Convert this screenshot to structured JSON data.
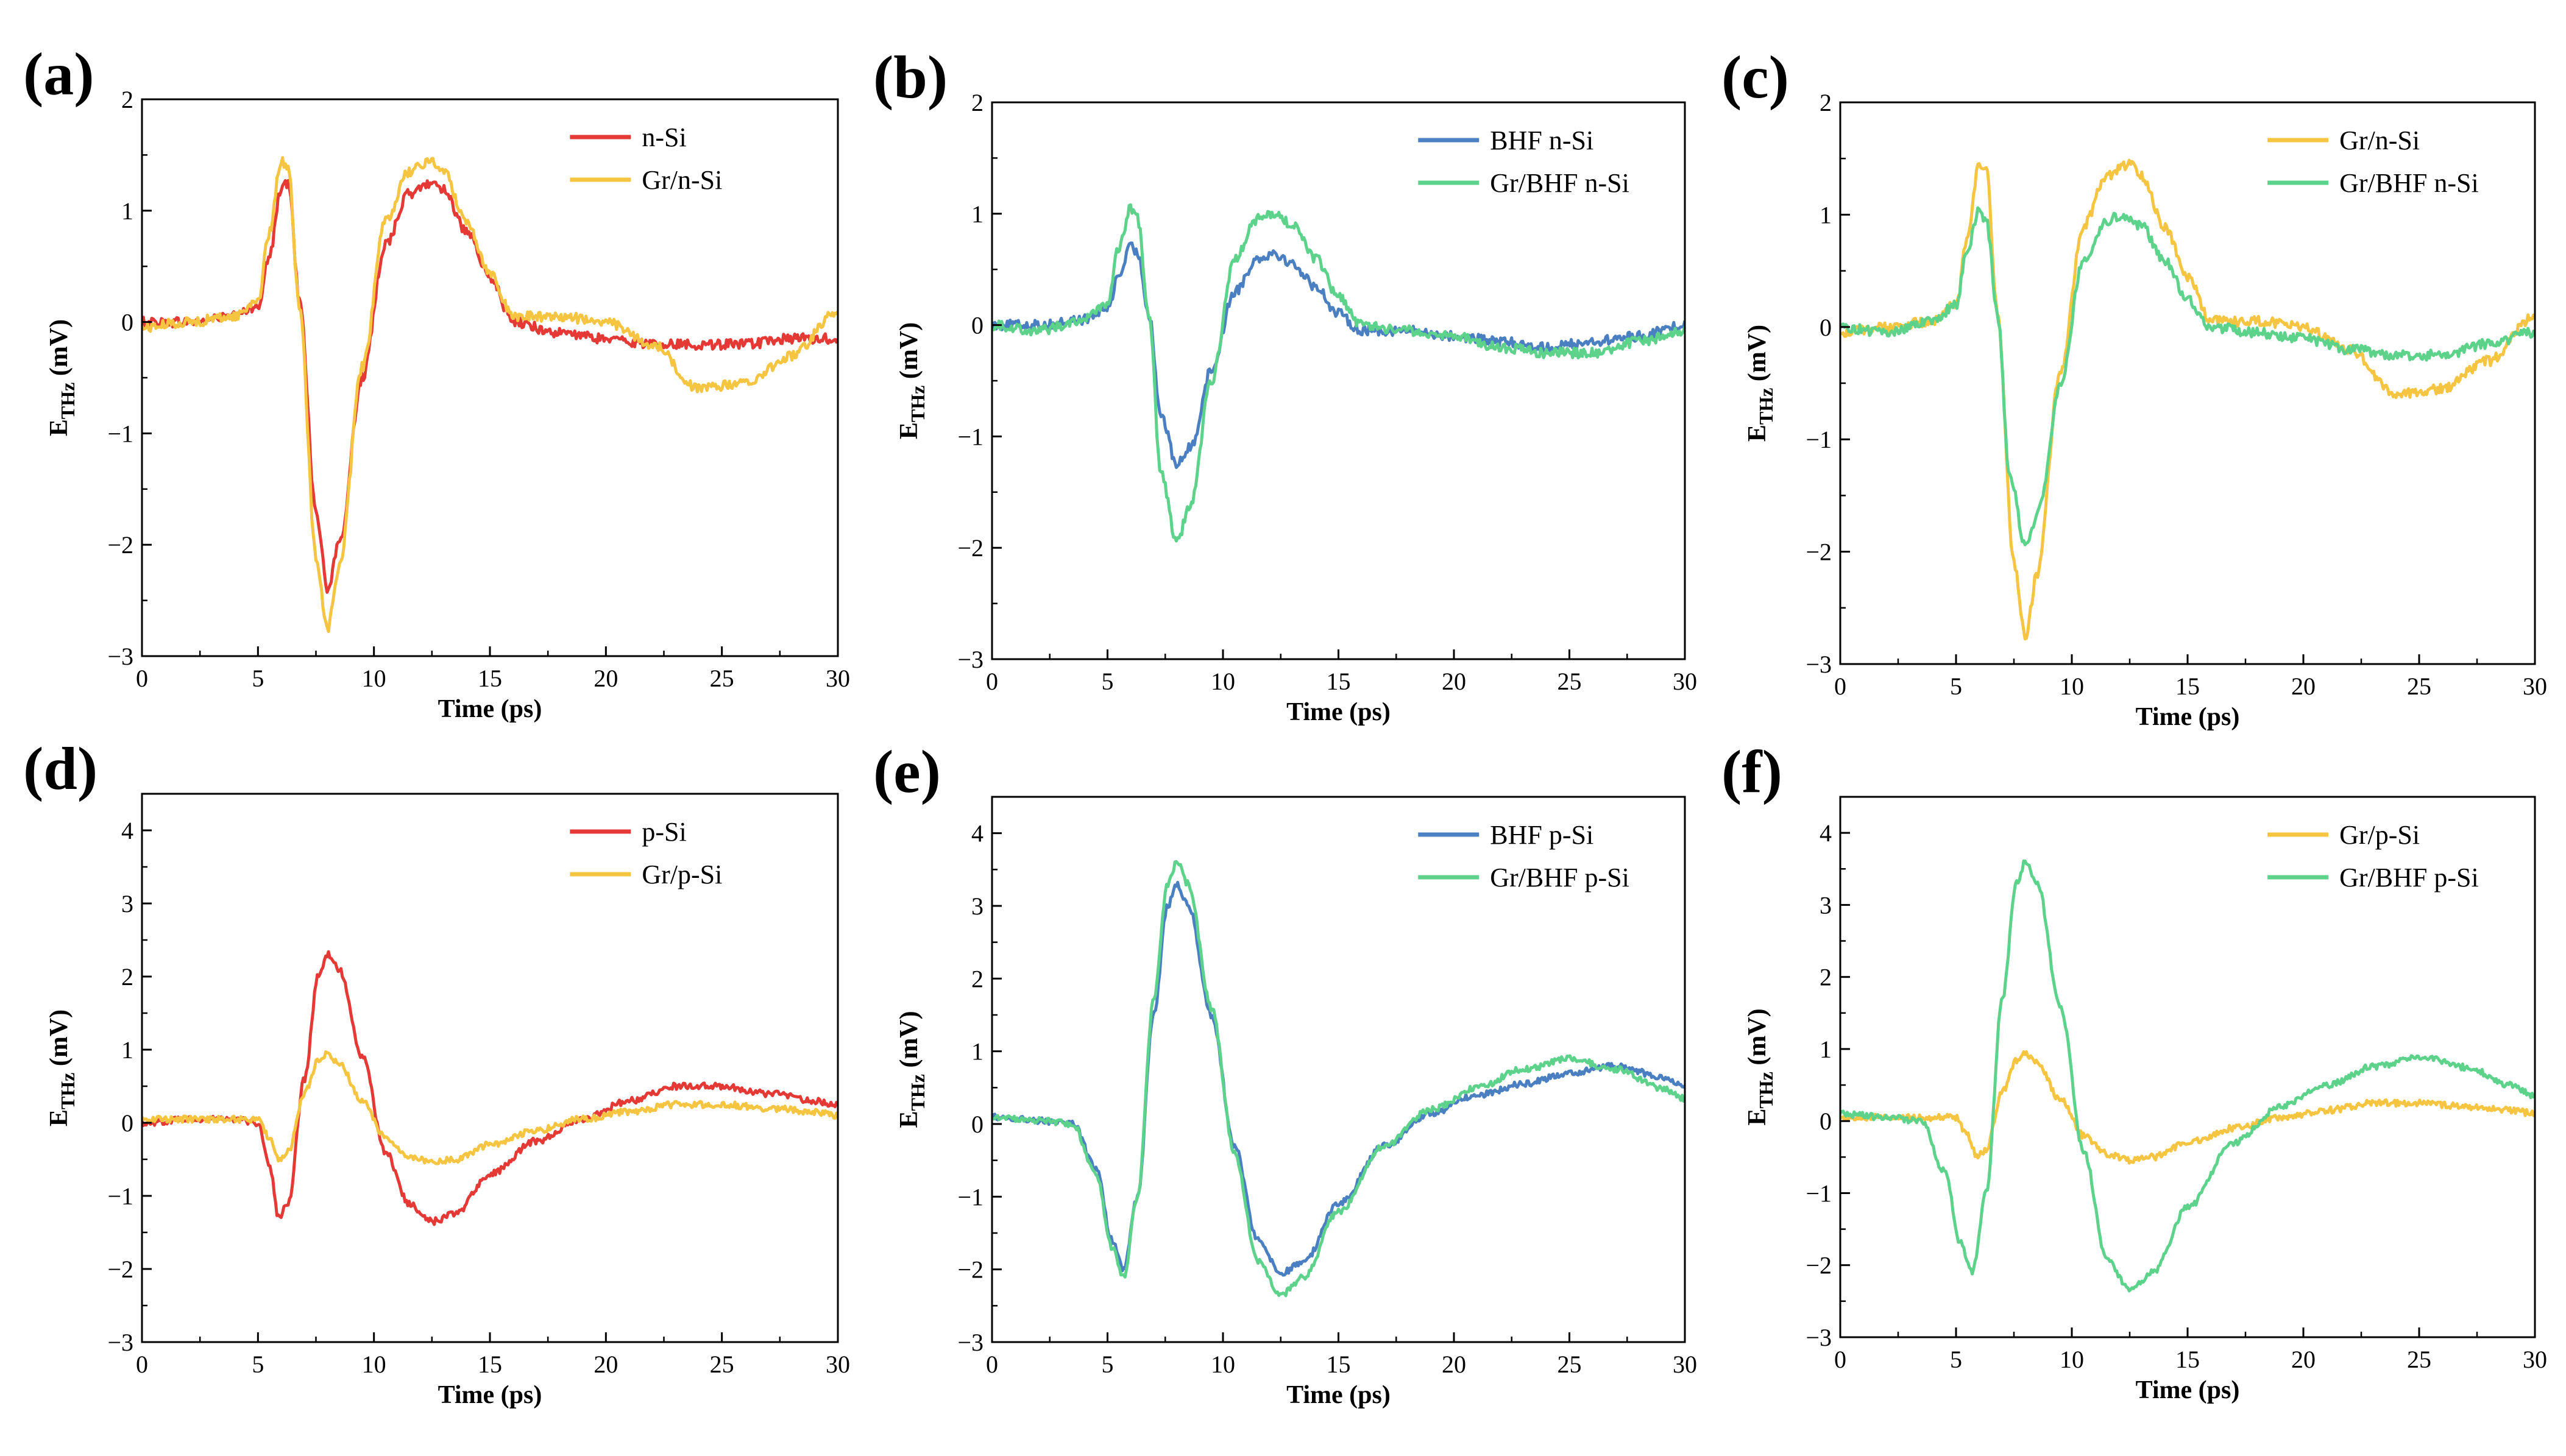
{
  "figure": {
    "colors": {
      "red": "#e53935",
      "yellow": "#f5c542",
      "blue": "#4a7fc1",
      "green": "#5cd28a"
    }
  },
  "chart_data": [
    {
      "type": "line",
      "panel_label": "(a)",
      "xlabel": "Time (ps)",
      "ylabel_main": "E",
      "ylabel_sub": "THz",
      "ylabel_unit": " (mV)",
      "xlim": [
        0,
        30
      ],
      "ylim": [
        -3,
        2
      ],
      "xticks": [
        0,
        5,
        10,
        15,
        20,
        25,
        30
      ],
      "yticks": [
        2,
        1,
        0,
        -1,
        -2,
        -3
      ],
      "xtick_labels": [
        "0",
        "5",
        "10",
        "15",
        "20",
        "25",
        "30"
      ],
      "ytick_labels": [
        "2",
        "1",
        "0",
        "−1",
        "−2",
        "−3"
      ],
      "legend_position": "top-right",
      "series": [
        {
          "name": "n-Si",
          "color_key": "red",
          "x": [
            0,
            2,
            4,
            5,
            5.5,
            6,
            6.3,
            6.8,
            7.5,
            8,
            8.5,
            9.5,
            10.5,
            11.5,
            12.5,
            13,
            14,
            15,
            16,
            18,
            20,
            22,
            24,
            26,
            28,
            30
          ],
          "y": [
            0,
            0,
            0.05,
            0.15,
            0.6,
            1.2,
            1.25,
            0.2,
            -1.7,
            -2.4,
            -2.0,
            -0.5,
            0.7,
            1.15,
            1.25,
            1.2,
            0.8,
            0.4,
            0.0,
            -0.1,
            -0.15,
            -0.2,
            -0.2,
            -0.2,
            -0.15,
            -0.15
          ]
        },
        {
          "name": "Gr/n-Si",
          "color_key": "yellow",
          "x": [
            0,
            2,
            4,
            5,
            5.5,
            6,
            6.3,
            6.8,
            7.5,
            8,
            8.5,
            9.5,
            10.5,
            11.5,
            12.5,
            13,
            14,
            15,
            16,
            18,
            20,
            22,
            24,
            26,
            28,
            30
          ],
          "y": [
            -0.05,
            0,
            0.05,
            0.2,
            0.8,
            1.45,
            1.4,
            0.1,
            -2.1,
            -2.75,
            -2.2,
            -0.4,
            0.9,
            1.35,
            1.45,
            1.35,
            0.9,
            0.45,
            0.05,
            0.05,
            0.0,
            -0.2,
            -0.6,
            -0.55,
            -0.3,
            0.1
          ]
        }
      ]
    },
    {
      "type": "line",
      "panel_label": "(b)",
      "xlabel": "Time (ps)",
      "ylabel_main": "E",
      "ylabel_sub": "THz",
      "ylabel_unit": " (mV)",
      "xlim": [
        0,
        30
      ],
      "ylim": [
        -3,
        2
      ],
      "xticks": [
        0,
        5,
        10,
        15,
        20,
        25,
        30
      ],
      "yticks": [
        2,
        1,
        0,
        -1,
        -2,
        -3
      ],
      "xtick_labels": [
        "0",
        "5",
        "10",
        "15",
        "20",
        "25",
        "30"
      ],
      "ytick_labels": [
        "2",
        "1",
        "0",
        "−1",
        "−2",
        "−3"
      ],
      "legend_position": "top-right",
      "series": [
        {
          "name": "BHF n-Si",
          "color_key": "blue",
          "x": [
            0,
            2,
            4,
            5,
            5.5,
            6,
            6.3,
            6.8,
            7.3,
            8,
            8.6,
            9.5,
            10.5,
            11.5,
            12.2,
            13,
            14,
            15,
            16,
            18,
            20,
            22,
            24,
            26,
            28,
            30
          ],
          "y": [
            0,
            0,
            0.05,
            0.15,
            0.45,
            0.7,
            0.65,
            0.1,
            -0.8,
            -1.25,
            -1.1,
            -0.4,
            0.3,
            0.6,
            0.65,
            0.55,
            0.35,
            0.1,
            -0.05,
            -0.05,
            -0.1,
            -0.15,
            -0.2,
            -0.15,
            -0.1,
            0.0
          ]
        },
        {
          "name": "Gr/BHF n-Si",
          "color_key": "green",
          "x": [
            0,
            2,
            4,
            5,
            5.5,
            6,
            6.3,
            6.8,
            7.3,
            8,
            8.6,
            9.5,
            10.5,
            11.5,
            12.2,
            13,
            14,
            15,
            16,
            18,
            20,
            22,
            24,
            26,
            28,
            30
          ],
          "y": [
            0,
            -0.05,
            0.05,
            0.2,
            0.7,
            1.05,
            0.95,
            0.1,
            -1.3,
            -1.95,
            -1.6,
            -0.5,
            0.6,
            0.95,
            1.0,
            0.9,
            0.6,
            0.25,
            0.0,
            -0.05,
            -0.1,
            -0.2,
            -0.25,
            -0.25,
            -0.15,
            -0.05
          ]
        }
      ]
    },
    {
      "type": "line",
      "panel_label": "(c)",
      "xlabel": "Time (ps)",
      "ylabel_main": "E",
      "ylabel_sub": "THz",
      "ylabel_unit": " (mV)",
      "xlim": [
        0,
        30
      ],
      "ylim": [
        -3,
        2
      ],
      "xticks": [
        0,
        5,
        10,
        15,
        20,
        25,
        30
      ],
      "yticks": [
        2,
        1,
        0,
        -1,
        -2,
        -3
      ],
      "xtick_labels": [
        "0",
        "5",
        "10",
        "15",
        "20",
        "25",
        "30"
      ],
      "ytick_labels": [
        "2",
        "1",
        "0",
        "−1",
        "−2",
        "−3"
      ],
      "legend_position": "top-right",
      "series": [
        {
          "name": "Gr/n-Si",
          "color_key": "yellow",
          "x": [
            0,
            2,
            4,
            5,
            5.5,
            6,
            6.3,
            6.8,
            7.5,
            8,
            8.5,
            9.5,
            10.5,
            11.5,
            12.5,
            13,
            14,
            15,
            16,
            18,
            20,
            22,
            24,
            26,
            28,
            30
          ],
          "y": [
            -0.05,
            0,
            0.05,
            0.2,
            0.8,
            1.45,
            1.4,
            0.1,
            -2.1,
            -2.75,
            -2.2,
            -0.4,
            0.9,
            1.35,
            1.45,
            1.35,
            0.9,
            0.45,
            0.05,
            0.05,
            0.0,
            -0.2,
            -0.6,
            -0.55,
            -0.3,
            0.1
          ]
        },
        {
          "name": "Gr/BHF n-Si",
          "color_key": "green",
          "x": [
            0,
            2,
            4,
            5,
            5.5,
            6,
            6.3,
            6.8,
            7.3,
            8,
            8.6,
            9.5,
            10.5,
            11.5,
            12.2,
            13,
            14,
            15,
            16,
            18,
            20,
            22,
            24,
            26,
            28,
            30
          ],
          "y": [
            0,
            -0.05,
            0.05,
            0.2,
            0.7,
            1.05,
            0.95,
            0.1,
            -1.3,
            -1.95,
            -1.6,
            -0.5,
            0.6,
            0.95,
            1.0,
            0.9,
            0.6,
            0.25,
            0.0,
            -0.05,
            -0.1,
            -0.2,
            -0.25,
            -0.25,
            -0.15,
            -0.05
          ]
        }
      ]
    },
    {
      "type": "line",
      "panel_label": "(d)",
      "xlabel": "Time (ps)",
      "ylabel_main": "E",
      "ylabel_sub": "THz",
      "ylabel_unit": " (mV)",
      "xlim": [
        0,
        30
      ],
      "ylim": [
        -3,
        4.5
      ],
      "xticks": [
        0,
        5,
        10,
        15,
        20,
        25,
        30
      ],
      "yticks": [
        4,
        3,
        2,
        1,
        0,
        -1,
        -2,
        -3
      ],
      "xtick_labels": [
        "0",
        "5",
        "10",
        "15",
        "20",
        "25",
        "30"
      ],
      "ytick_labels": [
        "4",
        "3",
        "2",
        "1",
        "0",
        "−1",
        "−2",
        "−3"
      ],
      "legend_position": "top-right",
      "series": [
        {
          "name": "p-Si",
          "color_key": "red",
          "x": [
            0,
            2,
            4,
            5,
            5.5,
            5.9,
            6.3,
            7,
            7.6,
            8,
            8.5,
            9.5,
            10.5,
            11.5,
            12.5,
            13.5,
            15,
            17,
            19,
            21,
            23,
            25,
            27,
            29,
            30
          ],
          "y": [
            0,
            0.05,
            0.05,
            0.0,
            -0.6,
            -1.3,
            -1.1,
            0.6,
            2.0,
            2.3,
            2.1,
            0.9,
            -0.4,
            -1.1,
            -1.35,
            -1.25,
            -0.7,
            -0.25,
            0.05,
            0.3,
            0.5,
            0.5,
            0.4,
            0.3,
            0.25
          ]
        },
        {
          "name": "Gr/p-Si",
          "color_key": "yellow",
          "x": [
            0,
            2,
            4,
            5,
            5.5,
            5.9,
            6.3,
            7,
            7.6,
            8,
            8.5,
            9.5,
            10.5,
            11.5,
            12.5,
            13.5,
            15,
            17,
            19,
            21,
            23,
            25,
            27,
            29,
            30
          ],
          "y": [
            0.05,
            0.05,
            0.05,
            0.05,
            -0.2,
            -0.5,
            -0.4,
            0.4,
            0.85,
            0.95,
            0.8,
            0.3,
            -0.2,
            -0.45,
            -0.55,
            -0.5,
            -0.3,
            -0.1,
            0.05,
            0.15,
            0.25,
            0.25,
            0.2,
            0.15,
            0.1
          ]
        }
      ]
    },
    {
      "type": "line",
      "panel_label": "(e)",
      "xlabel": "Time (ps)",
      "ylabel_main": "E",
      "ylabel_sub": "THz",
      "ylabel_unit": " (mV)",
      "xlim": [
        0,
        30
      ],
      "ylim": [
        -3,
        4.5
      ],
      "xticks": [
        0,
        5,
        10,
        15,
        20,
        25,
        30
      ],
      "yticks": [
        4,
        3,
        2,
        1,
        0,
        -1,
        -2,
        -3
      ],
      "xtick_labels": [
        "0",
        "5",
        "10",
        "15",
        "20",
        "25",
        "30"
      ],
      "ytick_labels": [
        "4",
        "3",
        "2",
        "1",
        "0",
        "−1",
        "−2",
        "−3"
      ],
      "legend_position": "top-right",
      "series": [
        {
          "name": "BHF p-Si",
          "color_key": "blue",
          "x": [
            0,
            2,
            3.5,
            4.5,
            5.2,
            5.7,
            6.3,
            7,
            7.6,
            8,
            8.5,
            9.5,
            10.5,
            11.5,
            12.5,
            13.5,
            15,
            17,
            19,
            21,
            23,
            25,
            27,
            29,
            30
          ],
          "y": [
            0.1,
            0.05,
            0.0,
            -0.6,
            -1.6,
            -2.0,
            -1.0,
            1.5,
            3.0,
            3.3,
            3.0,
            1.5,
            -0.3,
            -1.6,
            -2.05,
            -1.9,
            -1.1,
            -0.3,
            0.15,
            0.4,
            0.55,
            0.7,
            0.8,
            0.65,
            0.55
          ]
        },
        {
          "name": "Gr/BHF p-Si",
          "color_key": "green",
          "x": [
            0,
            2,
            3.5,
            4.5,
            5.2,
            5.7,
            6.3,
            7,
            7.6,
            8,
            8.5,
            9.5,
            10.5,
            11.5,
            12.5,
            13.5,
            15,
            17,
            19,
            21,
            23,
            25,
            27,
            29,
            30
          ],
          "y": [
            0.1,
            0.05,
            0.0,
            -0.7,
            -1.7,
            -2.1,
            -1.0,
            1.7,
            3.3,
            3.6,
            3.3,
            1.6,
            -0.4,
            -1.9,
            -2.35,
            -2.1,
            -1.2,
            -0.3,
            0.2,
            0.5,
            0.75,
            0.9,
            0.75,
            0.5,
            0.35
          ]
        }
      ]
    },
    {
      "type": "line",
      "panel_label": "(f)",
      "xlabel": "Time (ps)",
      "ylabel_main": "E",
      "ylabel_sub": "THz",
      "ylabel_unit": " (mV)",
      "xlim": [
        0,
        30
      ],
      "ylim": [
        -3,
        4.5
      ],
      "xticks": [
        0,
        5,
        10,
        15,
        20,
        25,
        30
      ],
      "yticks": [
        4,
        3,
        2,
        1,
        0,
        -1,
        -2,
        -3
      ],
      "xtick_labels": [
        "0",
        "5",
        "10",
        "15",
        "20",
        "25",
        "30"
      ],
      "ytick_labels": [
        "4",
        "3",
        "2",
        "1",
        "0",
        "−1",
        "−2",
        "−3"
      ],
      "legend_position": "top-right",
      "series": [
        {
          "name": "Gr/p-Si",
          "color_key": "yellow",
          "x": [
            0,
            2,
            4,
            5,
            5.5,
            5.9,
            6.3,
            7,
            7.6,
            8,
            8.5,
            9.5,
            10.5,
            11.5,
            12.5,
            13.5,
            15,
            17,
            19,
            21,
            23,
            25,
            27,
            29,
            30
          ],
          "y": [
            0.05,
            0.05,
            0.05,
            0.05,
            -0.2,
            -0.5,
            -0.4,
            0.4,
            0.85,
            0.95,
            0.8,
            0.3,
            -0.2,
            -0.45,
            -0.55,
            -0.5,
            -0.3,
            -0.1,
            0.05,
            0.15,
            0.25,
            0.25,
            0.2,
            0.15,
            0.1
          ]
        },
        {
          "name": "Gr/BHF p-Si",
          "color_key": "green",
          "x": [
            0,
            2,
            3.5,
            4.5,
            5.2,
            5.7,
            6.3,
            7,
            7.6,
            8,
            8.5,
            9.5,
            10.5,
            11.5,
            12.5,
            13.5,
            15,
            17,
            19,
            21,
            23,
            25,
            27,
            29,
            30
          ],
          "y": [
            0.1,
            0.05,
            0.0,
            -0.7,
            -1.7,
            -2.1,
            -1.0,
            1.7,
            3.3,
            3.6,
            3.3,
            1.6,
            -0.4,
            -1.9,
            -2.35,
            -2.1,
            -1.2,
            -0.3,
            0.2,
            0.5,
            0.75,
            0.9,
            0.75,
            0.5,
            0.35
          ]
        }
      ]
    }
  ]
}
